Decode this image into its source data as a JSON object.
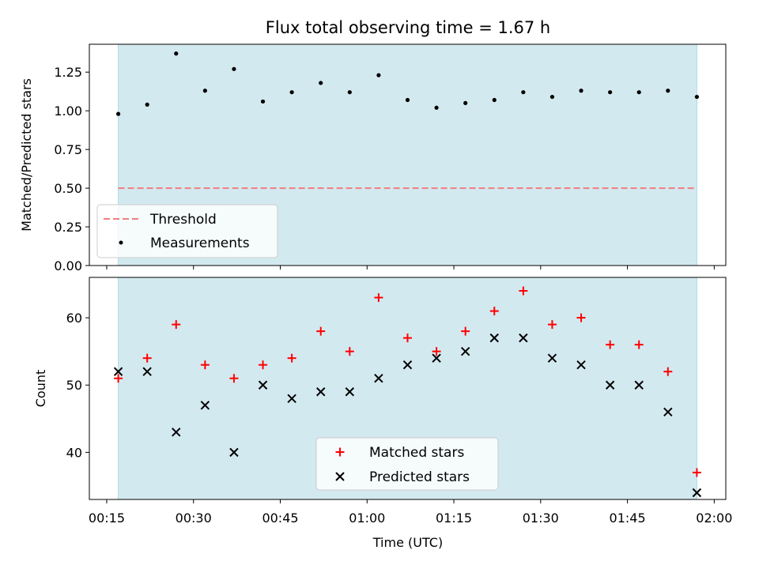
{
  "colors": {
    "shade": "#d3e9f0",
    "threshold": "#f08080",
    "measurement": "#000000",
    "matched": "#ff0000",
    "predicted": "#000000"
  },
  "chart_data": [
    {
      "type": "scatter",
      "title": "Flux total observing time = 1.67 h",
      "xlabel": "",
      "ylabel": "Matched/Predicted stars",
      "x_unit": "time (UTC)",
      "xlim": [
        "00:12",
        "02:02"
      ],
      "ylim": [
        0,
        1.43
      ],
      "yticks": [
        0.0,
        0.25,
        0.5,
        0.75,
        1.0,
        1.25
      ],
      "ytick_labels": [
        "0.00",
        "0.25",
        "0.50",
        "0.75",
        "1.00",
        "1.25"
      ],
      "shaded_span": [
        "00:17",
        "01:57"
      ],
      "threshold": {
        "name": "Threshold",
        "y": 0.5,
        "x_range": [
          "00:17",
          "01:57"
        ],
        "style": "dashed"
      },
      "series": [
        {
          "name": "Measurements",
          "x": [
            "00:17",
            "00:22",
            "00:27",
            "00:32",
            "00:37",
            "00:42",
            "00:47",
            "00:52",
            "00:57",
            "01:02",
            "01:07",
            "01:12",
            "01:17",
            "01:22",
            "01:27",
            "01:32",
            "01:37",
            "01:42",
            "01:47",
            "01:52",
            "01:57"
          ],
          "values": [
            0.98,
            1.04,
            1.37,
            1.13,
            1.27,
            1.06,
            1.12,
            1.18,
            1.12,
            1.23,
            1.07,
            1.02,
            1.05,
            1.07,
            1.12,
            1.09,
            1.13,
            1.12,
            1.12,
            1.13,
            1.09
          ]
        }
      ],
      "legend_position": "lower-left",
      "legend_entries": [
        "Threshold",
        "Measurements"
      ]
    },
    {
      "type": "scatter",
      "title": "",
      "xlabel": "Time (UTC)",
      "ylabel": "Count",
      "xlim": [
        "00:12",
        "02:02"
      ],
      "ylim": [
        33,
        66
      ],
      "xticks": [
        "00:15",
        "00:30",
        "00:45",
        "01:00",
        "01:15",
        "01:30",
        "01:45",
        "02:00"
      ],
      "yticks": [
        40,
        50,
        60
      ],
      "ytick_labels": [
        "40",
        "50",
        "60"
      ],
      "shaded_span": [
        "00:17",
        "01:57"
      ],
      "series": [
        {
          "name": "Matched stars",
          "marker": "+",
          "x": [
            "00:17",
            "00:22",
            "00:27",
            "00:32",
            "00:37",
            "00:42",
            "00:47",
            "00:52",
            "00:57",
            "01:02",
            "01:07",
            "01:12",
            "01:17",
            "01:22",
            "01:27",
            "01:32",
            "01:37",
            "01:42",
            "01:47",
            "01:52",
            "01:57"
          ],
          "values": [
            51,
            54,
            59,
            53,
            51,
            53,
            54,
            58,
            55,
            63,
            57,
            55,
            58,
            61,
            64,
            59,
            60,
            56,
            56,
            52,
            37
          ]
        },
        {
          "name": "Predicted stars",
          "marker": "x",
          "x": [
            "00:17",
            "00:22",
            "00:27",
            "00:32",
            "00:37",
            "00:42",
            "00:47",
            "00:52",
            "00:57",
            "01:02",
            "01:07",
            "01:12",
            "01:17",
            "01:22",
            "01:27",
            "01:32",
            "01:37",
            "01:42",
            "01:47",
            "01:52",
            "01:57"
          ],
          "values": [
            52,
            52,
            43,
            47,
            40,
            50,
            48,
            49,
            49,
            51,
            53,
            54,
            55,
            57,
            57,
            54,
            53,
            50,
            50,
            46,
            34
          ]
        }
      ],
      "legend_position": "lower-center",
      "legend_entries": [
        "Matched stars",
        "Predicted stars"
      ]
    }
  ]
}
